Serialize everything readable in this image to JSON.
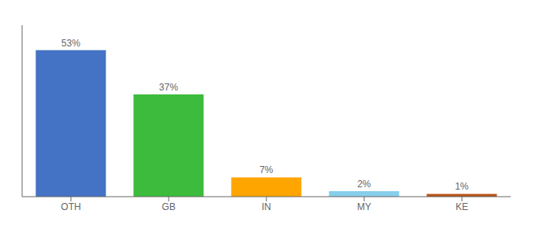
{
  "chart_data": {
    "type": "bar",
    "categories": [
      "OTH",
      "GB",
      "IN",
      "MY",
      "KE"
    ],
    "values": [
      53,
      37,
      7,
      2,
      1
    ],
    "value_labels": [
      "53%",
      "37%",
      "7%",
      "2%",
      "1%"
    ],
    "colors": [
      "#4472c4",
      "#3dbb3d",
      "#ffa500",
      "#87ceeb",
      "#b8541a"
    ],
    "ylim": [
      0,
      62
    ],
    "grid": false,
    "data_labels": true,
    "tick_labels": "x"
  }
}
